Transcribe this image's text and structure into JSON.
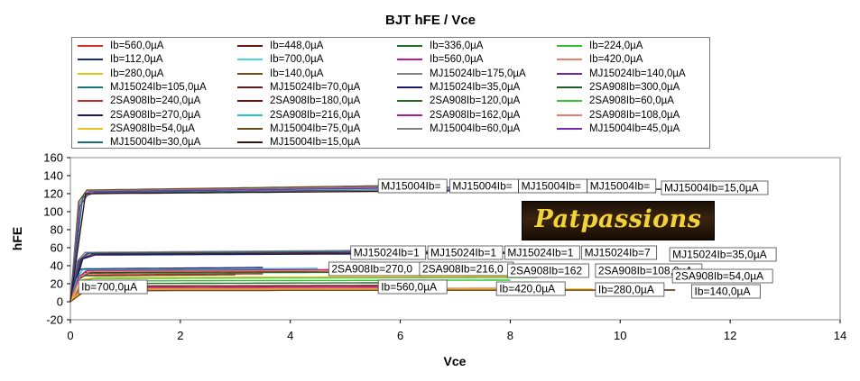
{
  "chart_data": {
    "type": "line",
    "title": "BJT hFE / Vce",
    "xlabel": "Vce",
    "ylabel": "hFE",
    "xlim": [
      0,
      14
    ],
    "ylim": [
      -20,
      160
    ],
    "xticks": [
      0,
      2,
      4,
      6,
      8,
      10,
      12,
      14
    ],
    "yticks": [
      -20,
      0,
      20,
      40,
      60,
      80,
      100,
      120,
      140,
      160
    ],
    "grid": false,
    "legend_position": "top",
    "series": [
      {
        "name": "Ib=560,0µA",
        "color": "#d0342c",
        "vmax": 5.6,
        "plateau": 17.5
      },
      {
        "name": "Ib=448,0µA",
        "color": "#6b1414",
        "vmax": 5.6,
        "plateau": 18
      },
      {
        "name": "Ib=336,0µA",
        "color": "#1f6f2a",
        "vmax": 5.6,
        "plateau": 21
      },
      {
        "name": "Ib=224,0µA",
        "color": "#33c233",
        "vmax": 8,
        "plateau": 24
      },
      {
        "name": "Ib=112,0µA",
        "color": "#1a2a7a",
        "vmax": 11,
        "plateau": 13
      },
      {
        "name": "Ib=700,0µA",
        "color": "#40d8d8",
        "vmax": 1.3,
        "plateau": 17
      },
      {
        "name": "Ib=560,0µA",
        "color": "#c0189c",
        "vmax": 5.6,
        "plateau": 16
      },
      {
        "name": "Ib=420,0µA",
        "color": "#e8806a",
        "vmax": 8,
        "plateau": 15
      },
      {
        "name": "Ib=280,0µA",
        "color": "#e8c21e",
        "vmax": 9.5,
        "plateau": 14
      },
      {
        "name": "Ib=140,0µA",
        "color": "#7a4a1c",
        "vmax": 11,
        "plateau": 13
      },
      {
        "name": "MJ15024Ib=175,0µA",
        "color": "#808080",
        "vmax": 5.3,
        "plateau": 57
      },
      {
        "name": "MJ15024Ib=140,0µA",
        "color": "#6a2aa8",
        "vmax": 6,
        "plateau": 56
      },
      {
        "name": "MJ15024Ib=105,0µA",
        "color": "#17737a",
        "vmax": 7,
        "plateau": 56
      },
      {
        "name": "MJ15024Ib=70,0µA",
        "color": "#5a1a1a",
        "vmax": 8,
        "plateau": 55
      },
      {
        "name": "MJ15024Ib=35,0µA",
        "color": "#1c1c6e",
        "vmax": 9,
        "plateau": 54
      },
      {
        "name": "2SA908Ib=300,0µA",
        "color": "#1d5a28",
        "vmax": 3,
        "plateau": 30
      },
      {
        "name": "2SA908Ib=240,0µA",
        "color": "#c82a2a",
        "vmax": 3.5,
        "plateau": 31
      },
      {
        "name": "2SA908Ib=180,0µA",
        "color": "#6a1010",
        "vmax": 5,
        "plateau": 34
      },
      {
        "name": "2SA908Ib=120,0µA",
        "color": "#2a6a2a",
        "vmax": 6.5,
        "plateau": 33
      },
      {
        "name": "2SA908Ib=60,0µA",
        "color": "#33c233",
        "vmax": 8.5,
        "plateau": 27
      },
      {
        "name": "2SA908Ib=270,0µA",
        "color": "#1a1a6a",
        "vmax": 3.5,
        "plateau": 38
      },
      {
        "name": "2SA908Ib=216,0µA",
        "color": "#20c8c8",
        "vmax": 4.5,
        "plateau": 37
      },
      {
        "name": "2SA908Ib=162,0µA",
        "color": "#b01890",
        "vmax": 6,
        "plateau": 36
      },
      {
        "name": "2SA908Ib=108,0µA",
        "color": "#e08070",
        "vmax": 7,
        "plateau": 35
      },
      {
        "name": "2SA908Ib=54,0µA",
        "color": "#e8c21e",
        "vmax": 9,
        "plateau": 28
      },
      {
        "name": "MJ15004Ib=75,0µA",
        "color": "#6a4a1a",
        "vmax": 6,
        "plateau": 129
      },
      {
        "name": "MJ15004Ib=60,0µA",
        "color": "#808080",
        "vmax": 6.5,
        "plateau": 128
      },
      {
        "name": "MJ15004Ib=45,0µA",
        "color": "#7a2ab0",
        "vmax": 7,
        "plateau": 127
      },
      {
        "name": "MJ15004Ib=30,0µA",
        "color": "#17737a",
        "vmax": 9,
        "plateau": 126
      },
      {
        "name": "MJ15004Ib=15,0µA",
        "color": "#3a1414",
        "vmax": 11,
        "plateau": 125
      }
    ],
    "annotations": [
      "MJ15004Ib=",
      "MJ15004Ib=",
      "MJ15004Ib=",
      "MJ15004Ib=",
      "MJ15004Ib=15,0µA",
      "MJ15024Ib=1",
      "MJ15024Ib=1",
      "MJ15024Ib=1",
      "MJ15024Ib=7",
      "MJ15024Ib=35,0µA",
      "2SA908Ib=270,0",
      "2SA908Ib=216,0",
      "2SA908Ib=162",
      "2SA908Ib=108,0µA",
      "2SA908Ib=54,0µA",
      "Ib=700,0µA",
      "Ib=560,0µA",
      "Ib=420,0µA",
      "Ib=280,0µA",
      "Ib=140,0µA"
    ]
  },
  "watermark": {
    "text": "Patpassions"
  },
  "colors": {
    "background": "#ffffff",
    "axis": "#000000",
    "frame": "#8a8a8a",
    "logo_text": "#f2d23a"
  }
}
